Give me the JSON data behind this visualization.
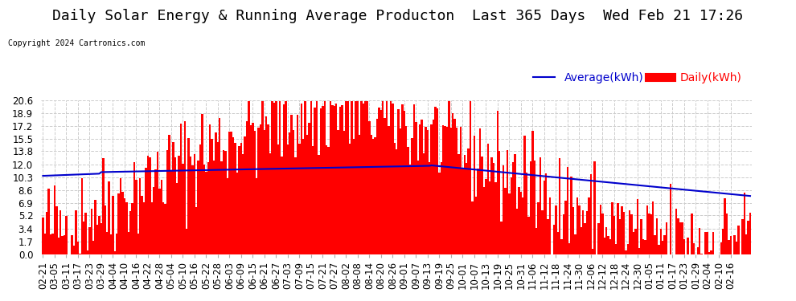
{
  "title": "Daily Solar Energy & Running Average Producton  Last 365 Days  Wed Feb 21 17:26",
  "legend_average": "Average(kWh)",
  "legend_daily": "Daily(kWh)",
  "copyright": "Copyright 2024 Cartronics.com",
  "bar_color": "#ff0000",
  "avg_line_color": "#0000cc",
  "background_color": "#ffffff",
  "plot_bg_color": "#ffffff",
  "grid_color": "#cccccc",
  "yticks": [
    0.0,
    1.7,
    3.4,
    5.2,
    6.9,
    8.6,
    10.3,
    12.0,
    13.8,
    15.5,
    17.2,
    18.9,
    20.6
  ],
  "ylim": [
    0,
    20.6
  ],
  "title_fontsize": 13,
  "tick_fontsize": 8.5,
  "legend_fontsize": 10
}
